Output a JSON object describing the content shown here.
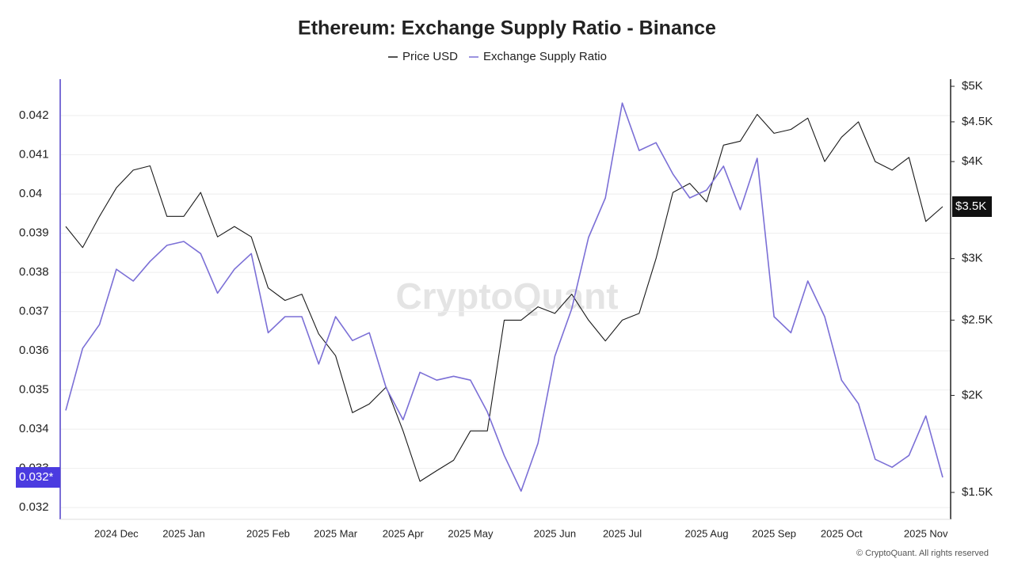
{
  "chart_data": {
    "type": "line",
    "title": "Ethereum: Exchange Supply Ratio - Binance",
    "categories": [
      null,
      null,
      null,
      "2024 Dec",
      null,
      null,
      null,
      "2025 Jan",
      null,
      null,
      null,
      null,
      "2025 Feb",
      null,
      null,
      null,
      "2025 Mar",
      null,
      null,
      null,
      "2025 Apr",
      null,
      null,
      null,
      "2025 May",
      null,
      null,
      null,
      null,
      "2025 Jun",
      null,
      null,
      null,
      "2025 Jul",
      null,
      null,
      null,
      null,
      "2025 Aug",
      null,
      null,
      null,
      "2025 Sep",
      null,
      null,
      null,
      "2025 Oct",
      null,
      null,
      null,
      null,
      "2025 Nov",
      null
    ],
    "series": [
      {
        "name": "Price USD",
        "color": "#1a1a1a",
        "axis": "y2",
        "values": [
          3300,
          3100,
          3400,
          3700,
          3900,
          3950,
          3400,
          3400,
          3650,
          3200,
          3300,
          3200,
          2750,
          2650,
          2700,
          2400,
          2250,
          1900,
          1950,
          2050,
          1800,
          1550,
          1600,
          1650,
          1800,
          1800,
          2500,
          2500,
          2600,
          2550,
          2700,
          2500,
          2350,
          2500,
          2550,
          3000,
          3650,
          3750,
          3550,
          4200,
          4250,
          4600,
          4350,
          4400,
          4550,
          4000,
          4300,
          4500,
          4000,
          3900,
          4050,
          3350,
          3500
        ]
      },
      {
        "name": "Exchange Supply Ratio",
        "color": "#7b6fd6",
        "values": [
          0.03448,
          0.03606,
          0.03667,
          0.03808,
          0.03778,
          0.03828,
          0.03869,
          0.03879,
          0.03848,
          0.03747,
          0.03808,
          0.03848,
          0.03646,
          0.03687,
          0.03687,
          0.03566,
          0.03687,
          0.03626,
          0.03646,
          0.03505,
          0.03424,
          0.03545,
          0.03525,
          0.03535,
          0.03525,
          0.03444,
          0.03333,
          0.03242,
          0.03364,
          0.03586,
          0.03707,
          0.03889,
          0.0399,
          0.04232,
          0.04111,
          0.04131,
          0.04051,
          0.0399,
          0.0401,
          0.04071,
          0.0396,
          0.04091,
          0.03687,
          0.03646,
          0.03778,
          0.03687,
          0.03525,
          0.03465,
          0.03323,
          0.03303,
          0.03333,
          0.03434,
          0.03277
        ]
      }
    ],
    "ylim": [
      0.0317,
      0.04293
    ],
    "yticks": [
      0.032,
      0.033,
      0.034,
      0.035,
      0.036,
      0.037,
      0.038,
      0.039,
      0.04,
      0.041,
      0.042
    ],
    "y2lim": [
      1385,
      5107
    ],
    "y2scale": "log",
    "y2ticks": [
      {
        "value": 1500,
        "label": "$1.5K"
      },
      {
        "value": 2000,
        "label": "$2K"
      },
      {
        "value": 2500,
        "label": "$2.5K"
      },
      {
        "value": 3000,
        "label": "$3K"
      },
      {
        "value": 4000,
        "label": "$4K"
      },
      {
        "value": 4500,
        "label": "$4.5K"
      },
      {
        "value": 5000,
        "label": "$5K"
      }
    ],
    "y_current_label": "0.032*",
    "y2_current_label": "$3.5K",
    "grid": true,
    "legend": "top"
  },
  "watermark": "CryptoQuant",
  "footer": "© CryptoQuant. All rights reserved"
}
